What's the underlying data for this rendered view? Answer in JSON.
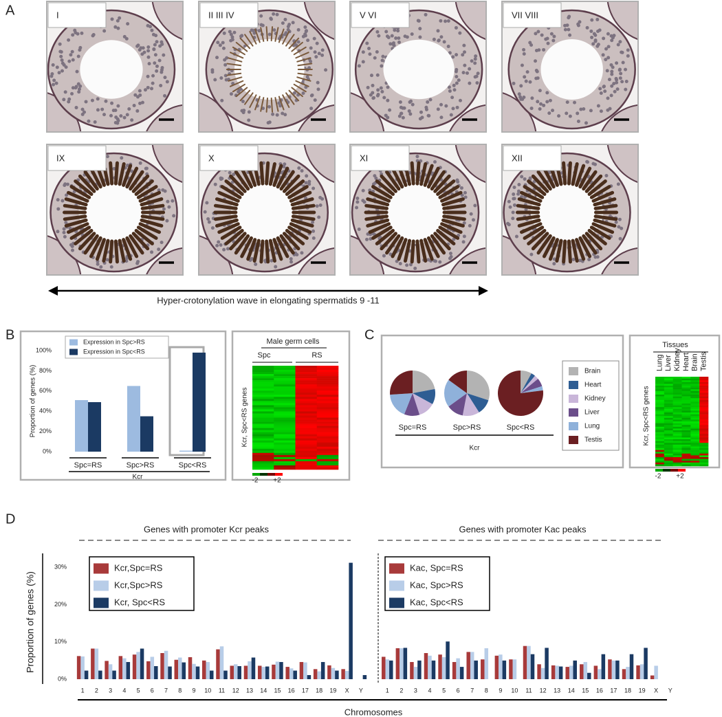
{
  "panel_letters": [
    "A",
    "B",
    "C",
    "D"
  ],
  "micrographs": {
    "stages": [
      "I",
      "II III IV",
      "V VI",
      "VII VIII",
      "IX",
      "X",
      "XI",
      "XII"
    ],
    "caption": "Hyper-crotonylation wave in elongating spermatids 9 -11"
  },
  "heatmaps": [
    {
      "title": "Male germ cells",
      "columns": [
        "Spc",
        "RS"
      ],
      "ylabel": "Kcr, Spc<RS genes",
      "scale": [
        "-2",
        "+2"
      ]
    },
    {
      "title": "Tissues",
      "columns": [
        "Lung",
        "Liver",
        "Kidney",
        "Heart",
        "Brain",
        "Testis"
      ],
      "ylabel": "Kcr, Spc<RS genes",
      "scale": [
        "-2",
        "+2"
      ]
    }
  ],
  "panel_d": {
    "ylabel": "Proportion of genes (%)",
    "xlabel": "Chromosomes"
  },
  "chart_data": [
    {
      "type": "bar",
      "categories": [
        "Spc=RS",
        "Spc>RS",
        "Spc<RS"
      ],
      "series": [
        {
          "name": "Expression in Spc>RS",
          "color": "#9dbbe0",
          "values": [
            51,
            65,
            1
          ]
        },
        {
          "name": "Expression in Spc<RS",
          "color": "#1b3a63",
          "values": [
            49,
            35,
            98
          ]
        }
      ],
      "ylim": [
        0,
        100
      ],
      "yticks": [
        {
          "value": 0,
          "label": "0%"
        },
        {
          "value": 20,
          "label": "20%"
        },
        {
          "value": 40,
          "label": "40%"
        },
        {
          "value": 60,
          "label": "60%"
        },
        {
          "value": 80,
          "label": "80%"
        },
        {
          "value": 100,
          "label": "100%"
        }
      ],
      "ylabel": "Proportion of genes (%)",
      "xlabel": "Kcr",
      "legend": "upper left"
    },
    {
      "type": "pie",
      "categories": [
        "Brain",
        "Heart",
        "Kidney",
        "Liver",
        "Lung",
        "Testis"
      ],
      "colors": [
        "#b3b3b3",
        "#2e5d93",
        "#c9b6d9",
        "#6b4e8a",
        "#8fb1da",
        "#6b1f22"
      ],
      "series": [
        {
          "name": "Spc=RS",
          "values": [
            22,
            11,
            12,
            11,
            18,
            26
          ]
        },
        {
          "name": "Spc>RS",
          "values": [
            30,
            11,
            12,
            12,
            20,
            15
          ]
        },
        {
          "name": "Spc<RS",
          "values": [
            8,
            3,
            3,
            6,
            3,
            77
          ]
        }
      ],
      "xlabel": "Kcr",
      "legend": "right"
    },
    {
      "type": "bar",
      "title": "Genes with promoter Kcr peaks",
      "categories": [
        "1",
        "2",
        "3",
        "4",
        "5",
        "6",
        "7",
        "8",
        "9",
        "10",
        "11",
        "12",
        "13",
        "14",
        "15",
        "16",
        "17",
        "18",
        "19",
        "X",
        "Y"
      ],
      "series": [
        {
          "name": "Kcr,Spc=RS",
          "color": "#a83a3a",
          "values": [
            6.2,
            8.2,
            4.9,
            6.2,
            6.6,
            4.8,
            7.0,
            5.2,
            5.9,
            5.0,
            8.0,
            3.6,
            3.6,
            3.6,
            3.9,
            3.3,
            4.6,
            2.7,
            3.7,
            2.7,
            0
          ]
        },
        {
          "name": "Kcr,Spc>RS",
          "color": "#b8cde8",
          "values": [
            6.1,
            8.2,
            4.0,
            5.6,
            7.3,
            6.0,
            7.6,
            5.8,
            4.1,
            4.6,
            8.8,
            4.0,
            4.8,
            3.3,
            4.7,
            2.9,
            4.5,
            2.1,
            3.0,
            2.2,
            0
          ]
        },
        {
          "name": "Kcr, Spc<RS",
          "color": "#1b3a63",
          "values": [
            2.3,
            2.3,
            2.3,
            4.6,
            8.2,
            3.5,
            3.4,
            4.5,
            3.4,
            2.3,
            2.3,
            3.5,
            5.8,
            3.4,
            4.6,
            2.3,
            1.1,
            4.6,
            2.3,
            31.2,
            1.1
          ]
        }
      ],
      "ylim": [
        0,
        35
      ],
      "yticks": [
        {
          "value": 0,
          "label": "0%"
        },
        {
          "value": 10,
          "label": "10%"
        },
        {
          "value": 20,
          "label": "20%"
        },
        {
          "value": 30,
          "label": "30%"
        }
      ],
      "legend": "upper left"
    },
    {
      "type": "bar",
      "title": "Genes with promoter Kac peaks",
      "categories": [
        "1",
        "2",
        "3",
        "4",
        "5",
        "6",
        "7",
        "8",
        "9",
        "10",
        "11",
        "12",
        "13",
        "14",
        "15",
        "16",
        "17",
        "18",
        "19",
        "X",
        "Y"
      ],
      "series": [
        {
          "name": "Kac, Spc=RS",
          "color": "#a83a3a",
          "values": [
            6.0,
            8.3,
            4.6,
            7.0,
            6.6,
            4.6,
            7.3,
            5.3,
            6.3,
            5.3,
            8.9,
            4.0,
            3.7,
            3.3,
            4.0,
            3.6,
            5.3,
            2.7,
            3.7,
            1.0,
            0
          ]
        },
        {
          "name": "Kac, Spc>RS",
          "color": "#b8cde8",
          "values": [
            5.3,
            8.3,
            3.3,
            6.3,
            5.9,
            5.6,
            7.3,
            8.3,
            6.6,
            5.3,
            8.9,
            3.0,
            3.6,
            3.6,
            4.6,
            2.7,
            5.0,
            3.3,
            4.0,
            3.6,
            0
          ]
        },
        {
          "name": "Kac, Spc<RS",
          "color": "#1b3a63",
          "values": [
            5.0,
            8.4,
            5.0,
            5.0,
            10.1,
            3.3,
            5.0,
            0,
            5.0,
            0,
            6.7,
            8.4,
            3.4,
            5.0,
            1.7,
            6.7,
            5.0,
            6.7,
            8.4,
            0,
            0
          ]
        }
      ],
      "ylim": [
        0,
        35
      ],
      "legend": "upper left"
    }
  ]
}
